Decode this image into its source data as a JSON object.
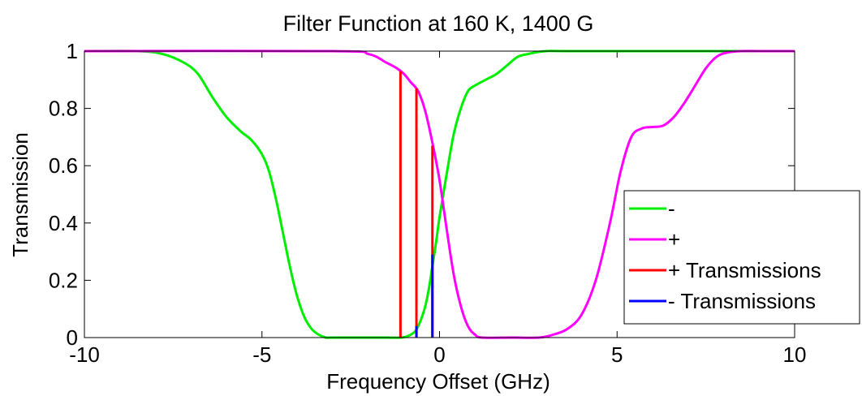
{
  "chart_data": {
    "type": "line",
    "title": "Filter Function at 160 K, 1400 G",
    "xlabel": "Frequency Offset (GHz)",
    "ylabel": "Transmission",
    "xlim": [
      -10,
      10
    ],
    "ylim": [
      0,
      1
    ],
    "xticks": [
      -10,
      -5,
      0,
      5,
      10
    ],
    "xtick_labels": [
      "-10",
      "-5",
      "0",
      "5",
      "10"
    ],
    "yticks": [
      0,
      0.2,
      0.4,
      0.6,
      0.8,
      1
    ],
    "ytick_labels": [
      "0",
      "0.2",
      "0.4",
      "0.6",
      "0.8",
      "1"
    ],
    "grid": false,
    "legend_position": "lower-right",
    "series": [
      {
        "name": "-",
        "color": "#00ee00",
        "x": [
          -10,
          -8.5,
          -7.8,
          -7.2,
          -6.8,
          -6.4,
          -6.0,
          -5.6,
          -5.3,
          -5.0,
          -4.8,
          -4.6,
          -4.4,
          -4.2,
          -4.0,
          -3.8,
          -3.6,
          -3.4,
          -3.2,
          -3.0,
          -2.0,
          -1.5,
          -1.1,
          -0.9,
          -0.7,
          -0.6,
          -0.5,
          -0.4,
          -0.3,
          -0.2,
          -0.1,
          0.0,
          0.2,
          0.4,
          0.6,
          0.8,
          1.0,
          1.3,
          1.6,
          1.9,
          2.2,
          2.5,
          3.0,
          4.0,
          10
        ],
        "y": [
          1.0,
          1.0,
          0.99,
          0.96,
          0.92,
          0.84,
          0.77,
          0.72,
          0.69,
          0.64,
          0.58,
          0.48,
          0.36,
          0.24,
          0.14,
          0.07,
          0.03,
          0.01,
          0.0,
          0.0,
          0.0,
          0.0,
          0.0,
          0.005,
          0.02,
          0.04,
          0.07,
          0.11,
          0.17,
          0.25,
          0.33,
          0.42,
          0.57,
          0.71,
          0.8,
          0.86,
          0.88,
          0.9,
          0.92,
          0.95,
          0.98,
          0.99,
          1.0,
          1.0,
          1.0
        ]
      },
      {
        "name": "+",
        "color": "#ff00ff",
        "x": [
          -10,
          -3.0,
          -2.0,
          -1.5,
          -1.2,
          -1.0,
          -0.8,
          -0.6,
          -0.4,
          -0.2,
          0.0,
          0.2,
          0.4,
          0.6,
          0.8,
          1.0,
          1.2,
          2.0,
          2.8,
          3.2,
          3.6,
          4.0,
          4.4,
          4.8,
          5.1,
          5.4,
          5.7,
          6.0,
          6.3,
          6.6,
          6.9,
          7.2,
          7.5,
          7.8,
          8.1,
          8.5,
          9.0,
          10
        ],
        "y": [
          1.0,
          1.0,
          0.99,
          0.96,
          0.94,
          0.92,
          0.89,
          0.86,
          0.79,
          0.68,
          0.55,
          0.38,
          0.22,
          0.11,
          0.04,
          0.01,
          0.0,
          0.0,
          0.0,
          0.01,
          0.03,
          0.08,
          0.2,
          0.4,
          0.58,
          0.7,
          0.73,
          0.735,
          0.74,
          0.77,
          0.82,
          0.88,
          0.94,
          0.98,
          0.995,
          1.0,
          1.0,
          1.0
        ]
      },
      {
        "name": "+ Transmissions",
        "color": "#ff0000",
        "type": "stem",
        "x": [
          -1.1,
          -0.65,
          -0.2
        ],
        "y": [
          0.93,
          0.87,
          0.67
        ]
      },
      {
        "name": "- Transmissions",
        "color": "#0000ff",
        "type": "stem",
        "x": [
          -1.1,
          -0.65,
          -0.2
        ],
        "y": [
          0.0,
          0.04,
          0.29
        ]
      }
    ]
  }
}
